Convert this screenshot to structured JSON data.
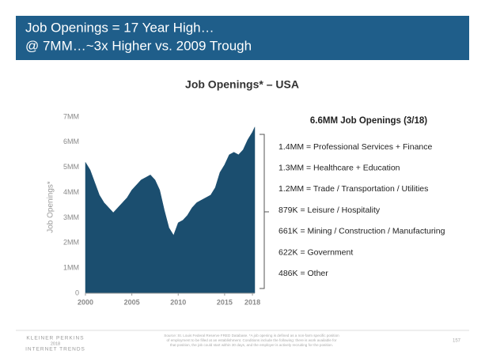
{
  "header": {
    "title_lines": [
      "Job Openings = 17 Year High…",
      "@ 7MM…~3x Higher vs. 2009 Trough"
    ]
  },
  "chart_data": {
    "type": "area",
    "title": "Job Openings* – USA",
    "ylabel": "Job Openings*",
    "color": "#1b4e6f",
    "x": [
      2000.0,
      2000.5,
      2001.0,
      2001.5,
      2002.0,
      2002.5,
      2003.0,
      2003.5,
      2004.0,
      2004.5,
      2005.0,
      2005.5,
      2006.0,
      2006.5,
      2007.0,
      2007.5,
      2008.0,
      2008.5,
      2009.0,
      2009.5,
      2010.0,
      2010.5,
      2011.0,
      2011.5,
      2012.0,
      2012.5,
      2013.0,
      2013.5,
      2014.0,
      2014.5,
      2015.0,
      2015.5,
      2016.0,
      2016.5,
      2017.0,
      2017.5,
      2018.0,
      2018.25
    ],
    "values": [
      5.2,
      4.9,
      4.4,
      3.9,
      3.6,
      3.4,
      3.2,
      3.4,
      3.6,
      3.8,
      4.1,
      4.3,
      4.5,
      4.6,
      4.7,
      4.5,
      4.1,
      3.3,
      2.6,
      2.3,
      2.8,
      2.9,
      3.1,
      3.4,
      3.6,
      3.7,
      3.8,
      3.9,
      4.2,
      4.8,
      5.1,
      5.5,
      5.6,
      5.5,
      5.7,
      6.1,
      6.4,
      6.6
    ],
    "xlim": [
      2000,
      2018.25
    ],
    "xticks": [
      2000,
      2005,
      2010,
      2015,
      2018
    ],
    "ylim": [
      0,
      7
    ],
    "yticks": [
      0,
      {
        "value": 1,
        "label": "1MM"
      },
      {
        "value": 2,
        "label": "2MM"
      },
      {
        "value": 3,
        "label": "3MM"
      },
      {
        "value": 4,
        "label": "4MM"
      },
      {
        "value": 5,
        "label": "5MM"
      },
      {
        "value": 6,
        "label": "6MM"
      },
      {
        "value": 7,
        "label": "7MM"
      }
    ]
  },
  "breakdown": {
    "title": "6.6MM Job Openings (3/18)",
    "items": [
      "1.4MM = Professional Services + Finance",
      "1.3MM = Healthcare + Education",
      "1.2MM = Trade / Transportation / Utilities",
      "879K = Leisure / Hospitality",
      "661K = Mining / Construction / Manufacturing",
      "622K = Government",
      "486K = Other"
    ]
  },
  "footer": {
    "logo_lines": [
      "KLEINER PERKINS",
      "2018",
      "INTERNET TRENDS"
    ],
    "source_lines": [
      "Source: St. Louis Federal Reserve FRED Database. *A job opening is defined as a non-farm specific position",
      "of employment to be filled at an establishment. Conditions include the following: there is work available for",
      "that position, the job could start within 30 days, and the employer is actively recruiting for the position."
    ],
    "page": "157"
  }
}
